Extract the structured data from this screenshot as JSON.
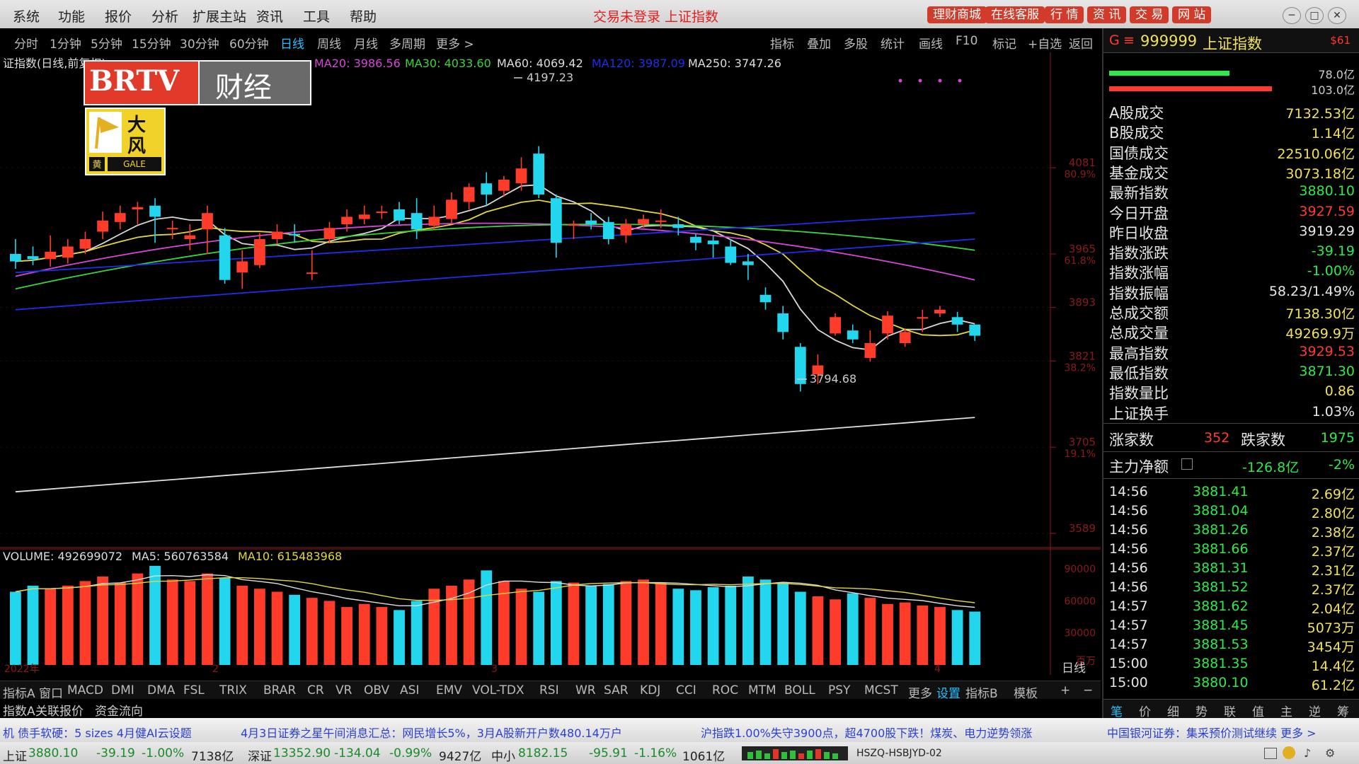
{
  "menu": [
    "系统",
    "功能",
    "报价",
    "分析",
    "扩展主站",
    "资讯",
    "工具",
    "帮助"
  ],
  "status_title": "交易未登录  上证指数",
  "top_buttons": [
    "理财商城",
    "在线客服",
    "行 情",
    "资 讯",
    "交 易",
    "网 站"
  ],
  "window_controls": [
    "─",
    "□",
    "✕"
  ],
  "periods": [
    "分时",
    "1分钟",
    "5分钟",
    "15分钟",
    "30分钟",
    "60分钟",
    "日线",
    "周线",
    "月线",
    "多周期",
    "更多 >"
  ],
  "active_period": "日线",
  "tools": [
    "指标",
    "叠加",
    "多股",
    "统计",
    "画线",
    "F10",
    "标记",
    "+自选",
    "返回"
  ],
  "logo": {
    "brand": "BRTV",
    "channel": "财经"
  },
  "badge": {
    "line1": "大",
    "line2": "风",
    "tag1": "黄",
    "tag2": "GALE"
  },
  "ma_bar": {
    "prefix": "证指数(日线,前复权)",
    "ma20": "MA20: 3986.56",
    "ma30": "MA30: 4033.60",
    "ma60": "MA60: 4069.42",
    "ma120": "MA120: 3987.09",
    "ma250": "MA250: 3747.26"
  },
  "annotations": {
    "high": "4197.23",
    "low": "3794.68"
  },
  "price_axis": [
    {
      "value": "4081",
      "pct": "80.9%"
    },
    {
      "value": "3965",
      "pct": "61.8%"
    },
    {
      "value": "3893",
      "pct": ""
    },
    {
      "value": "3821",
      "pct": "38.2%"
    },
    {
      "value": "3705",
      "pct": "19.1%"
    },
    {
      "value": "3589",
      "pct": ""
    }
  ],
  "volume_label": {
    "vol": "VOLUME: 492699072",
    "ma5": "MA5: 560763584",
    "ma10": "MA10: 615483968"
  },
  "volume_axis": [
    "90000",
    "60000",
    "30000",
    "百万"
  ],
  "date_marks": [
    "2022年",
    "2",
    "3",
    "4"
  ],
  "date_right": "日线",
  "chart_data": {
    "type": "candlestick",
    "candles": [
      [
        3965,
        3955,
        3985,
        3945
      ],
      [
        3962,
        3958,
        3975,
        3950
      ],
      [
        3958,
        3968,
        3990,
        3948
      ],
      [
        3960,
        3975,
        3985,
        3952
      ],
      [
        3972,
        3985,
        3995,
        3965
      ],
      [
        3995,
        4010,
        4022,
        3985
      ],
      [
        4008,
        4020,
        4030,
        3998
      ],
      [
        4025,
        4028,
        4035,
        4005
      ],
      [
        4030,
        4015,
        4040,
        3980
      ],
      [
        4000,
        4000,
        4010,
        3985
      ],
      [
        3985,
        3990,
        4005,
        3970
      ],
      [
        3998,
        4020,
        4030,
        3965
      ],
      [
        3990,
        3930,
        4000,
        3925
      ],
      [
        3940,
        3955,
        3970,
        3918
      ],
      [
        3950,
        3985,
        3993,
        3946
      ],
      [
        3985,
        3995,
        4005,
        3978
      ],
      [
        3992,
        3990,
        4005,
        3980
      ],
      [
        3940,
        3940,
        3970,
        3930
      ],
      [
        3985,
        4000,
        4008,
        3980
      ],
      [
        4005,
        4015,
        4025,
        3995
      ],
      [
        4012,
        4018,
        4030,
        4005
      ],
      [
        4020,
        4022,
        4030,
        4012
      ],
      [
        4025,
        4010,
        4035,
        4005
      ],
      [
        4020,
        3998,
        4040,
        3985
      ],
      [
        4003,
        4015,
        4030,
        3998
      ],
      [
        4012,
        4038,
        4048,
        4005
      ],
      [
        4035,
        4055,
        4060,
        4025
      ],
      [
        4060,
        4045,
        4075,
        4030
      ],
      [
        4050,
        4065,
        4070,
        4042
      ],
      [
        4060,
        4080,
        4095,
        4050
      ],
      [
        4100,
        4045,
        4110,
        4040
      ],
      [
        4040,
        3980,
        4045,
        3960
      ],
      [
        4005,
        4005,
        4010,
        3985
      ],
      [
        4010,
        4005,
        4020,
        3998
      ],
      [
        4008,
        3985,
        4015,
        3978
      ],
      [
        3990,
        4005,
        4012,
        3980
      ],
      [
        4005,
        4012,
        4018,
        4000
      ],
      [
        4010,
        4010,
        4025,
        4000
      ],
      [
        4005,
        4000,
        4015,
        3990
      ],
      [
        3988,
        3980,
        3992,
        3970
      ],
      [
        3983,
        3978,
        3990,
        3960
      ],
      [
        3975,
        3953,
        3985,
        3950
      ],
      [
        3955,
        3950,
        3965,
        3930
      ],
      [
        3910,
        3900,
        3920,
        3890
      ],
      [
        3885,
        3860,
        3895,
        3850
      ],
      [
        3840,
        3790,
        3845,
        3780
      ],
      [
        3803,
        3815,
        3830,
        3790
      ],
      [
        3858,
        3880,
        3885,
        3855
      ],
      [
        3862,
        3850,
        3870,
        3845
      ],
      [
        3825,
        3845,
        3862,
        3820
      ],
      [
        3858,
        3882,
        3888,
        3850
      ],
      [
        3845,
        3860,
        3865,
        3840
      ],
      [
        3878,
        3880,
        3890,
        3860
      ],
      [
        3885,
        3890,
        3895,
        3880
      ],
      [
        3880,
        3870,
        3887,
        3860
      ],
      [
        3870,
        3855,
        3870,
        3848
      ]
    ],
    "ma_lines": [
      {
        "name": "MA5",
        "color": "#d8d8d8"
      },
      {
        "name": "MA10",
        "color": "#e2d640"
      },
      {
        "name": "MA20",
        "color": "#d646d6"
      },
      {
        "name": "MA30",
        "color": "#3ad43a"
      },
      {
        "name": "MA60",
        "color": "#1e2ee8"
      },
      {
        "name": "MA250",
        "color": "#e0e0e0"
      }
    ],
    "volumes": [
      48,
      52,
      50,
      52,
      55,
      58,
      54,
      60,
      65,
      56,
      55,
      60,
      57,
      52,
      50,
      48,
      46,
      44,
      42,
      38,
      40,
      38,
      36,
      42,
      50,
      52,
      56,
      62,
      55,
      50,
      48,
      55,
      54,
      52,
      53,
      55,
      56,
      54,
      50,
      49,
      51,
      52,
      58,
      56,
      54,
      48,
      45,
      43,
      47,
      44,
      40,
      41,
      39,
      38,
      36,
      35
    ],
    "up_color": "#ff3b2a",
    "down_color": "#22d6ee"
  },
  "right_panel": {
    "header": {
      "code": "999999",
      "name": "上证指数",
      "mark": "G",
      "tag": "$61"
    },
    "bars": {
      "up": "78.0亿",
      "down": "103.0亿"
    },
    "rows": [
      {
        "label": "A股成交",
        "value": "7132.53亿",
        "color": "yel"
      },
      {
        "label": "B股成交",
        "value": "1.14亿",
        "color": "yel"
      },
      {
        "label": "国债成交",
        "value": "22510.06亿",
        "color": "yel"
      },
      {
        "label": "基金成交",
        "value": "3073.18亿",
        "color": "yel"
      },
      {
        "label": "最新指数",
        "value": "3880.10",
        "color": "green"
      },
      {
        "label": "今日开盘",
        "value": "3927.59",
        "color": "red"
      },
      {
        "label": "昨日收盘",
        "value": "3919.29",
        "color": "wht"
      },
      {
        "label": "指数涨跌",
        "value": "-39.19",
        "color": "green"
      },
      {
        "label": "指数涨幅",
        "value": "-1.00%",
        "color": "green"
      },
      {
        "label": "指数振幅",
        "value": "58.23/1.49%",
        "color": "wht"
      },
      {
        "label": "总成交额",
        "value": "7138.30亿",
        "color": "yel"
      },
      {
        "label": "总成交量",
        "value": "49269.9万",
        "color": "yel"
      },
      {
        "label": "最高指数",
        "value": "3929.53",
        "color": "red"
      },
      {
        "label": "最低指数",
        "value": "3871.30",
        "color": "green"
      },
      {
        "label": "指数量比",
        "value": "0.86",
        "color": "yel"
      },
      {
        "label": "上证换手",
        "value": "1.03%",
        "color": "wht"
      }
    ],
    "advance": {
      "up_label": "涨家数",
      "up": "352",
      "down_label": "跌家数",
      "down": "1975"
    },
    "capital": {
      "label": "主力净额",
      "value": "-126.8亿",
      "pct": "-2%"
    },
    "ticks": [
      {
        "time": "14:56",
        "price": "3881.41",
        "vol": "2.69亿"
      },
      {
        "time": "14:56",
        "price": "3881.04",
        "vol": "2.80亿"
      },
      {
        "time": "14:56",
        "price": "3881.26",
        "vol": "2.38亿"
      },
      {
        "time": "14:56",
        "price": "3881.66",
        "vol": "2.37亿"
      },
      {
        "time": "14:56",
        "price": "3881.31",
        "vol": "2.31亿"
      },
      {
        "time": "14:56",
        "price": "3881.52",
        "vol": "2.37亿"
      },
      {
        "time": "14:57",
        "price": "3881.62",
        "vol": "2.04亿"
      },
      {
        "time": "14:57",
        "price": "3881.45",
        "vol": "5073万"
      },
      {
        "time": "14:57",
        "price": "3881.53",
        "vol": "3454万"
      },
      {
        "time": "15:00",
        "price": "3881.35",
        "vol": "14.4亿"
      },
      {
        "time": "15:00",
        "price": "3880.10",
        "vol": "61.2亿"
      }
    ],
    "bottom_tabs": [
      "笔",
      "价",
      "细",
      "势",
      "联",
      "值",
      "主",
      "逆",
      "筹"
    ]
  },
  "indicators": [
    "指标A",
    "窗口",
    "MACD",
    "DMI",
    "DMA",
    "FSL",
    "TRIX",
    "BRAR",
    "CR",
    "VR",
    "OBV",
    "ASI",
    "EMV",
    "VOL-TDX",
    "RSI",
    "WR",
    "SAR",
    "KDJ",
    "CCI",
    "ROC",
    "MTM",
    "BOLL",
    "PSY",
    "MCST",
    "更多",
    "设置"
  ],
  "indicator_right": [
    "指标B",
    "模板",
    "+",
    "−"
  ],
  "subbar": [
    "指数A",
    "关联报价",
    "资金流向"
  ],
  "news": [
    "机 债手软硬：5 sizes 4月健AI云设题",
    "4月3日证券之星午间消息汇总：网民增长5%，3月A股新开户数480.14万户",
    "沪指跌1.00%失守3900点，超4700股下跌！煤炭、电力逆势领涨",
    "中国银河证券：集采预价测试继续  更多 >"
  ],
  "bottom_bar": {
    "sh_label": "上证",
    "sh_price": "3880.10",
    "sh_chg": "-39.19",
    "sh_pct": "-1.00%",
    "sh_amt": "7138亿",
    "sz_label": "深证",
    "sz_price": "13352.90",
    "sz_chg": "-134.04",
    "sz_pct": "-0.99%",
    "sz_amt": "9427亿",
    "zx_label": "中小",
    "zx_price": "8182.15",
    "zx_chg": "-95.91",
    "zx_pct": "-1.16%",
    "zx_amt": "1061亿",
    "server": "HSZQ-HSBJYD-02"
  }
}
